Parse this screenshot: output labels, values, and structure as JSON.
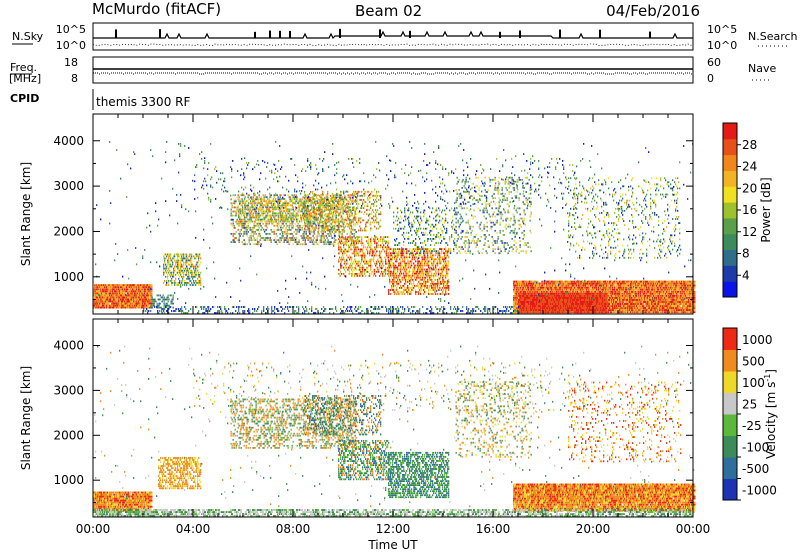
{
  "header": {
    "station": "McMurdo (fitACF)",
    "beam": "Beam 02",
    "date": "04/Feb/2016"
  },
  "strips": {
    "sky_label": "N.Sky",
    "search_label": "N.Search",
    "sky_left_ticks": [
      "10^5",
      "10^0"
    ],
    "sky_right_ticks": [
      "10^5",
      "10^0"
    ],
    "freq_label_top": "Freq.",
    "freq_label_unit": "[MHz]",
    "freq_ticks": [
      "18",
      "8"
    ],
    "nave_label": "Nave",
    "nave_ticks": [
      "60",
      "0"
    ],
    "cpid_label": "CPID",
    "cpid_value": "themis 3300 RF"
  },
  "chart_data": [
    {
      "type": "heatmap",
      "name": "power",
      "ylabel": "Slant Range [km]",
      "yticks": [
        1000,
        2000,
        3000,
        4000
      ],
      "ylim": [
        180,
        4590
      ],
      "xlim_hours": [
        0,
        24
      ],
      "colorbar": {
        "label": "Power [dB]",
        "ticks": [
          "4",
          "8",
          "12",
          "16",
          "20",
          "24",
          "28"
        ],
        "range": [
          0,
          32
        ],
        "colors": [
          "#0a14e6",
          "#1e3ca8",
          "#2e6e8a",
          "#3a8c5c",
          "#5aa04a",
          "#9ec22e",
          "#f0e020",
          "#f2b424",
          "#f0861c",
          "#e8501a",
          "#e41a14"
        ]
      }
    },
    {
      "type": "heatmap",
      "name": "velocity",
      "ylabel": "Slant Range [km]",
      "yticks": [
        1000,
        2000,
        3000,
        4000
      ],
      "ylim": [
        180,
        4590
      ],
      "xlim_hours": [
        0,
        24
      ],
      "xticks": [
        "00:00",
        "04:00",
        "08:00",
        "12:00",
        "16:00",
        "20:00",
        "00:00"
      ],
      "xlabel": "Time UT",
      "colorbar": {
        "label": "Velocity [m s",
        "label_exp": "-1",
        "label_close": "]",
        "ticks": [
          "1000",
          "500",
          "100",
          "25",
          "-25",
          "-100",
          "-500",
          "-1000"
        ],
        "colors": [
          "#1e32b4",
          "#2e6e9a",
          "#3c8c5a",
          "#5ab83a",
          "#c8c8c8",
          "#f0d828",
          "#f08c1e",
          "#ee2a14"
        ]
      }
    }
  ],
  "colors": {
    "power_low": "#1e3ca8",
    "power_mid": "#9ec22e",
    "power_high": "#e41a14",
    "vel_pos": "#3c8c5a",
    "vel_neg": "#f08c1e",
    "vel_gnd": "#c8c8c8"
  }
}
